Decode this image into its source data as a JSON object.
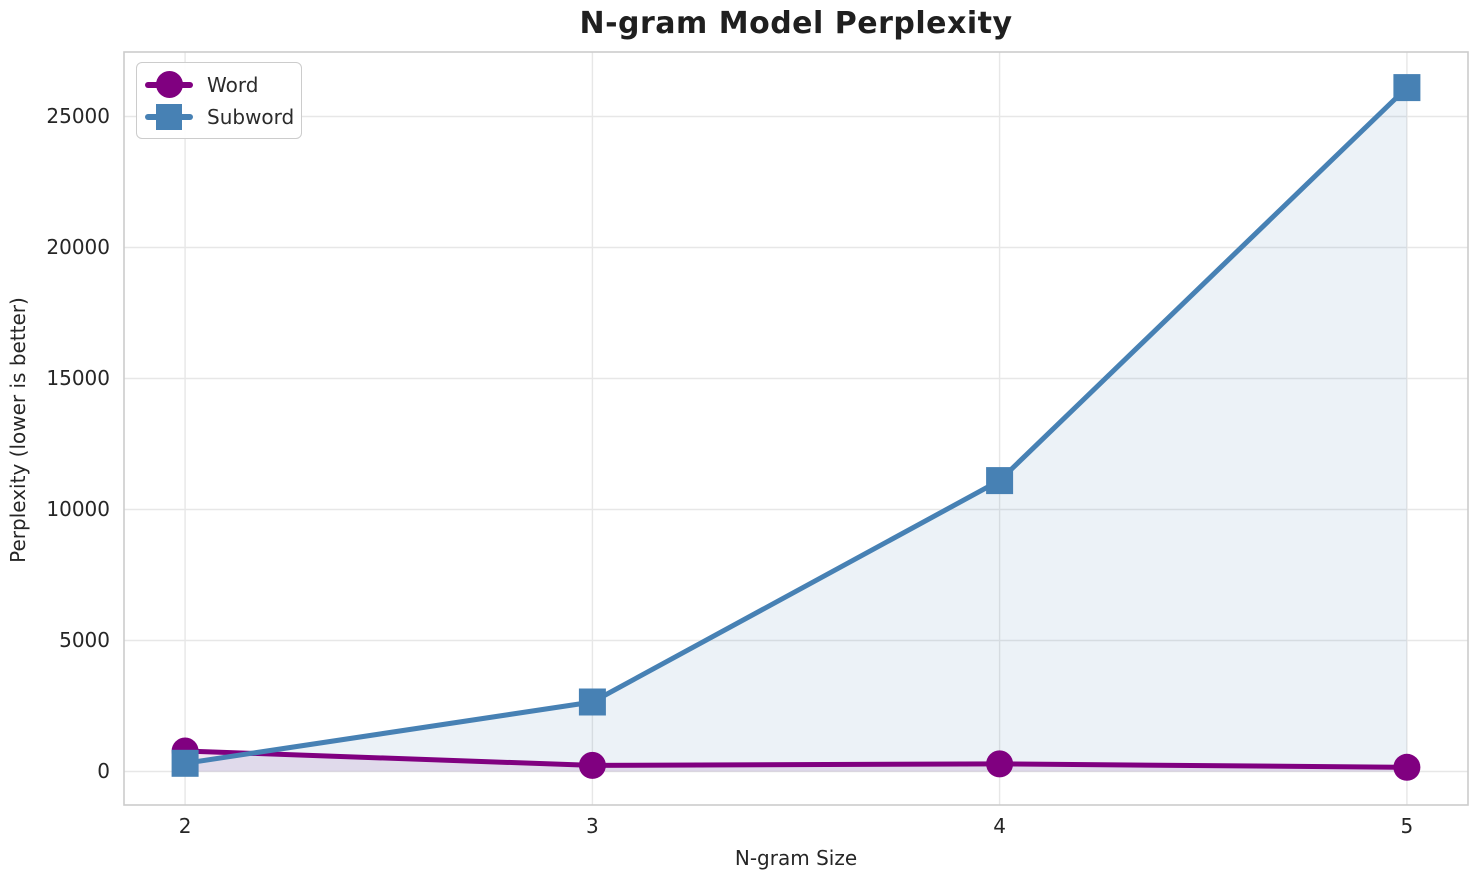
{
  "title": "N-gram Model Perplexity",
  "chart_data": {
    "type": "line",
    "x": [
      2,
      3,
      4,
      5
    ],
    "series": [
      {
        "name": "Word",
        "values": [
          780,
          230,
          290,
          160
        ],
        "color": "#800080",
        "marker": "circle",
        "fill_to_zero": true,
        "fill_alpha": 0.1
      },
      {
        "name": "Subword",
        "values": [
          310,
          2650,
          11100,
          26100
        ],
        "color": "#4781B4",
        "marker": "square",
        "fill_to_zero": true,
        "fill_alpha": 0.1
      }
    ],
    "title": "N-gram Model Perplexity",
    "xlabel": "N-gram Size",
    "ylabel": "Perplexity (lower is better)",
    "xticks": {
      "values": [
        2,
        3,
        4,
        5
      ],
      "labels": [
        "2",
        "3",
        "4",
        "5"
      ]
    },
    "yticks": {
      "values": [
        0,
        5000,
        10000,
        15000,
        20000,
        25000
      ],
      "labels": [
        "0",
        "5000",
        "10000",
        "15000",
        "20000",
        "25000"
      ]
    },
    "xlim": [
      1.85,
      5.15
    ],
    "ylim": [
      -1280,
      27460
    ],
    "grid": true,
    "grid_color": "#e7e7e7",
    "spine_color": "#cccccc",
    "text_color": "#262626",
    "legend_position": "upper left",
    "line_width": 5
  }
}
